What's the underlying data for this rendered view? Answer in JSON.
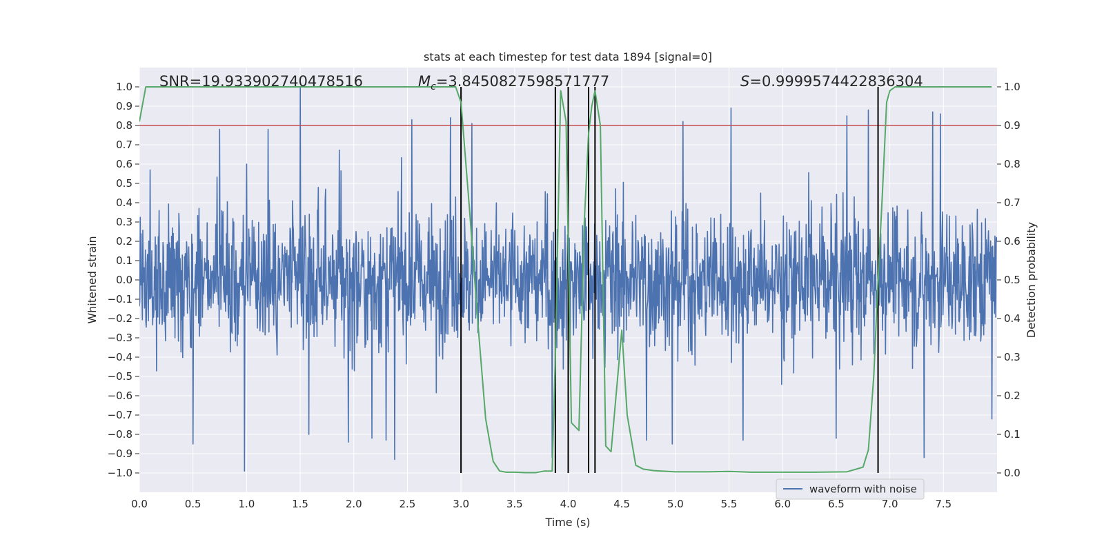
{
  "chart_data": {
    "type": "line",
    "title": "stats at each timestep for test data 1894 [signal=0]",
    "xlabel": "Time (s)",
    "ylabel": "Whitened strain",
    "y2label": "Detection probability",
    "xlim": [
      0.0,
      8.0
    ],
    "ylim": [
      -1.1,
      1.1
    ],
    "y2lim": [
      -0.05,
      1.05
    ],
    "xticks": [
      0.0,
      0.5,
      1.0,
      1.5,
      2.0,
      2.5,
      3.0,
      3.5,
      4.0,
      4.5,
      5.0,
      5.5,
      6.0,
      6.5,
      7.0,
      7.5
    ],
    "xtick_labels": [
      "0.0",
      "0.5",
      "1.0",
      "1.5",
      "2.0",
      "2.5",
      "3.0",
      "3.5",
      "4.0",
      "4.5",
      "5.0",
      "5.5",
      "6.0",
      "6.5",
      "7.0",
      "7.5"
    ],
    "yticks": [
      1.0,
      0.9,
      0.8,
      0.7,
      0.6,
      0.5,
      0.4,
      0.3,
      0.2,
      0.1,
      0.0,
      -0.1,
      -0.2,
      -0.3,
      -0.4,
      -0.5,
      -0.6,
      -0.7,
      -0.8,
      -0.9,
      -1.0
    ],
    "ytick_labels": [
      "1.0",
      "0.9",
      "0.8",
      "0.7",
      "0.6",
      "0.5",
      "0.4",
      "0.3",
      "0.2",
      "0.1",
      "0.0",
      "−0.1",
      "−0.2",
      "−0.3",
      "−0.4",
      "−0.5",
      "−0.6",
      "−0.7",
      "−0.8",
      "−0.9",
      "−1.0"
    ],
    "y2ticks": [
      1.0,
      0.9,
      0.8,
      0.7,
      0.6,
      0.5,
      0.4,
      0.3,
      0.2,
      0.1,
      0.0
    ],
    "y2tick_labels": [
      "1.0",
      "0.9",
      "0.8",
      "0.7",
      "0.6",
      "0.5",
      "0.4",
      "0.3",
      "0.2",
      "0.1",
      "0.0"
    ],
    "annotations": {
      "snr": "SNR=19.933902740478516",
      "mc_symbol": "M",
      "mc_sub": "c",
      "mc_value": "=3.8450827598571777",
      "s_symbol": "S",
      "s_value": "=0.9999574422836304"
    },
    "threshold": {
      "value": 0.9,
      "axis": "y2",
      "color": "#c44e52"
    },
    "vertical_markers": {
      "times": [
        3.0,
        3.88,
        4.0,
        4.19,
        4.25,
        6.89
      ],
      "ymin": -1.0,
      "ymax": 1.0,
      "color": "#000000"
    },
    "noise_series": {
      "name": "waveform with noise",
      "color": "#4c72b0",
      "t_start": 0.0,
      "t_end": 8.0,
      "count": 2000,
      "base_amp": 0.47,
      "spikes": [
        {
          "t": 0.98,
          "v": -0.99
        },
        {
          "t": 1.5,
          "v": 1.0
        },
        {
          "t": 0.5,
          "v": -0.85
        },
        {
          "t": 0.1,
          "v": 0.57
        },
        {
          "t": 1.0,
          "v": 0.6
        },
        {
          "t": 1.58,
          "v": -0.8
        },
        {
          "t": 1.95,
          "v": -0.84
        },
        {
          "t": 2.17,
          "v": -0.82
        },
        {
          "t": 2.38,
          "v": -0.93
        },
        {
          "t": 2.54,
          "v": 0.83
        },
        {
          "t": 1.2,
          "v": 0.78
        },
        {
          "t": 3.85,
          "v": -0.92
        },
        {
          "t": 5.52,
          "v": 0.89
        },
        {
          "t": 6.8,
          "v": 0.88
        },
        {
          "t": 7.4,
          "v": 0.87
        },
        {
          "t": 7.47,
          "v": 0.86
        },
        {
          "t": 7.32,
          "v": -0.92
        },
        {
          "t": 2.9,
          "v": 0.84
        },
        {
          "t": 4.97,
          "v": -0.85
        },
        {
          "t": 5.63,
          "v": -0.83
        },
        {
          "t": 6.5,
          "v": -0.82
        },
        {
          "t": 4.73,
          "v": -0.83
        },
        {
          "t": 5.07,
          "v": 0.82
        },
        {
          "t": 6.6,
          "v": 0.85
        },
        {
          "t": 3.1,
          "v": 0.81
        },
        {
          "t": 0.75,
          "v": 0.78
        },
        {
          "t": 2.3,
          "v": -0.83
        },
        {
          "t": 7.95,
          "v": -0.72
        }
      ]
    },
    "probability_series": {
      "name": "detection probability",
      "color": "#55a868",
      "axis": "y2",
      "x": [
        0.0,
        0.06,
        2.5,
        2.95,
        3.0,
        3.08,
        3.16,
        3.23,
        3.3,
        3.36,
        3.42,
        3.5,
        3.6,
        3.7,
        3.78,
        3.85,
        3.88,
        3.93,
        3.98,
        4.03,
        4.1,
        4.15,
        4.19,
        4.22,
        4.25,
        4.3,
        4.35,
        4.4,
        4.5,
        4.55,
        4.63,
        4.7,
        4.8,
        5.0,
        5.3,
        5.5,
        5.7,
        6.0,
        6.3,
        6.6,
        6.75,
        6.8,
        6.85,
        6.89,
        6.93,
        6.97,
        7.0,
        7.05,
        7.4,
        7.5,
        7.95
      ],
      "y": [
        0.91,
        1.0,
        1.0,
        1.0,
        0.96,
        0.68,
        0.38,
        0.14,
        0.03,
        0.005,
        0.002,
        0.002,
        0.001,
        0.001,
        0.005,
        0.005,
        0.3,
        0.99,
        0.91,
        0.13,
        0.11,
        0.65,
        0.88,
        0.95,
        0.99,
        0.9,
        0.07,
        0.055,
        0.37,
        0.15,
        0.02,
        0.01,
        0.006,
        0.003,
        0.003,
        0.004,
        0.002,
        0.002,
        0.002,
        0.003,
        0.015,
        0.06,
        0.25,
        0.5,
        0.72,
        0.96,
        0.99,
        1.0,
        1.0,
        1.0,
        1.0
      ]
    },
    "legend": {
      "entries": [
        "waveform with noise"
      ],
      "position": "lower-right"
    },
    "grid": true
  },
  "colors": {
    "axes_bg": "#eaeaf2",
    "grid": "#ffffff",
    "text": "#262626"
  }
}
